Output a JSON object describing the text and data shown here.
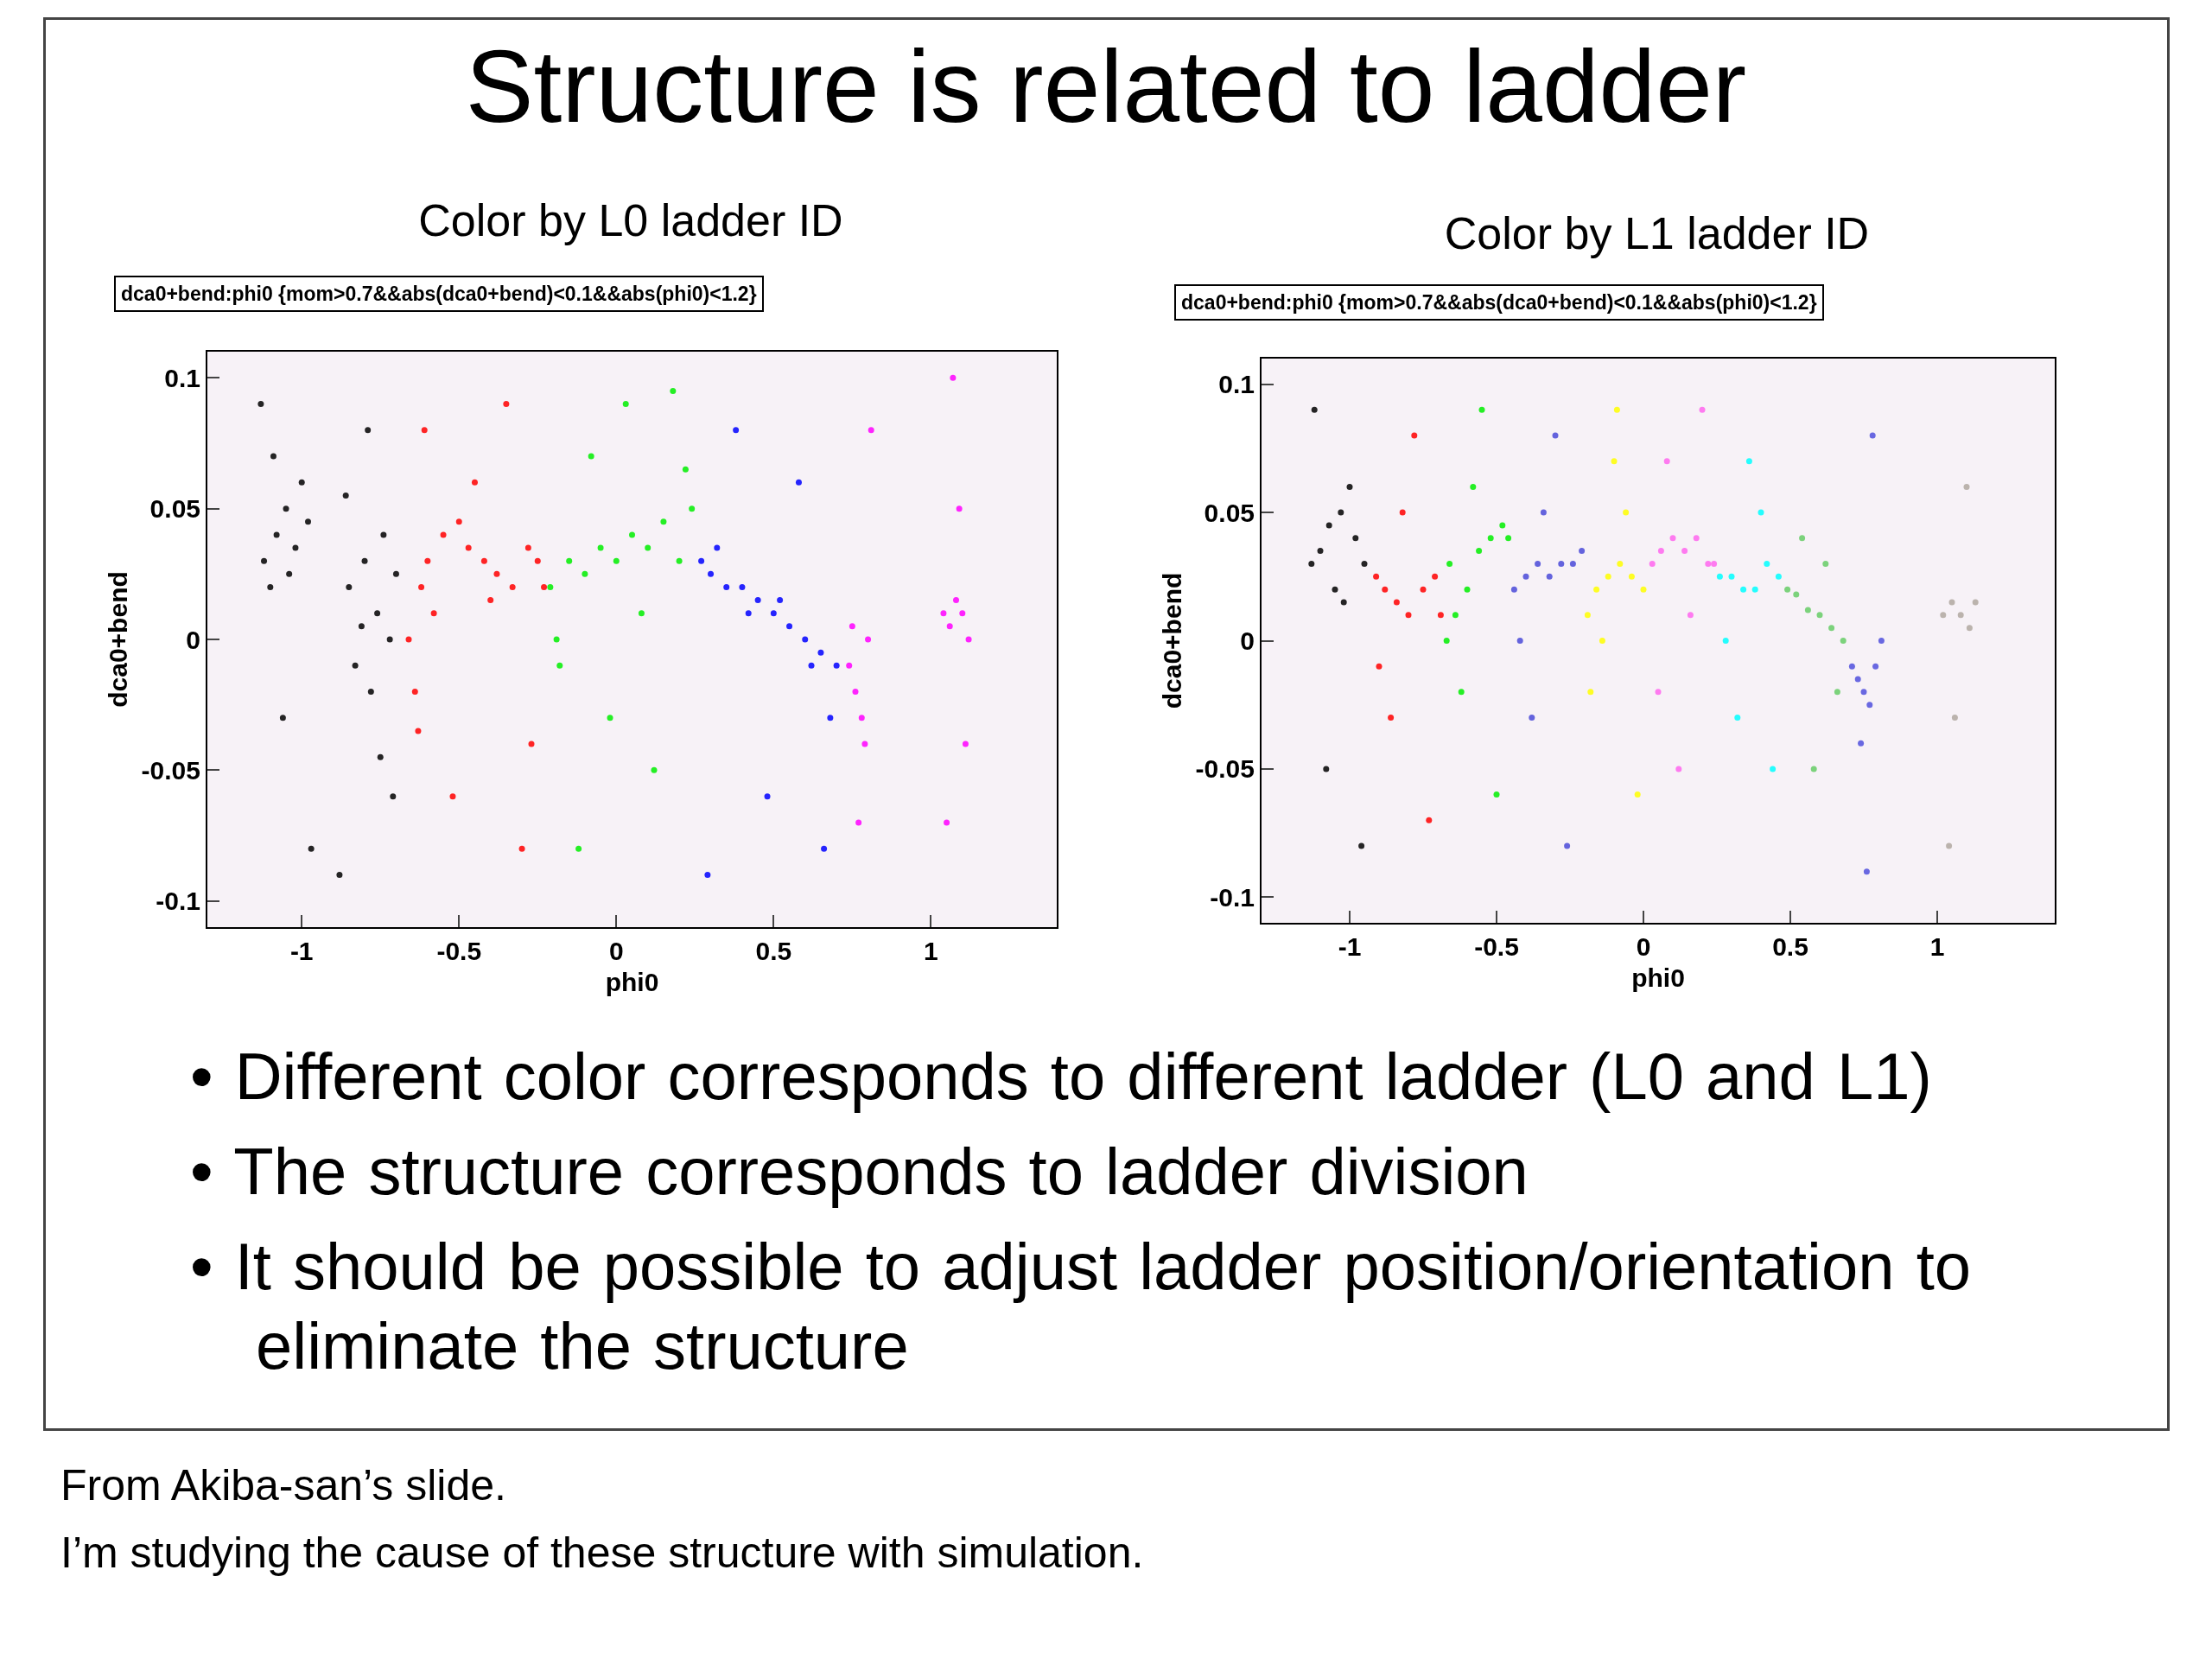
{
  "chart_data": [
    {
      "type": "other",
      "title": "Structure is related to ladder"
    },
    {
      "type": "scatter",
      "title": "Color by L0 ladder ID",
      "xlabel": "phi0",
      "ylabel": "dca0+bend",
      "annotations": [
        "dca0+bend:phi0 {mom>0.7&&abs(dca0+bend)<0.1&&abs(phi0)<1.2}"
      ],
      "xlim": [
        -1.3,
        1.4
      ],
      "ylim": [
        -0.11,
        0.11
      ],
      "xticks": [
        -1,
        -0.5,
        0,
        0.5,
        1
      ],
      "yticks": [
        -0.1,
        -0.05,
        0,
        0.05,
        0.1
      ],
      "grid": false,
      "marker": "circle",
      "series": [
        {
          "color": "#000000",
          "x": [
            -1.12,
            -1.08,
            -1.05,
            -1.02,
            -0.98,
            -1.1,
            -1.04,
            -1.0,
            -1.13,
            -0.97,
            -1.06,
            -0.85,
            -0.8,
            -0.76,
            -0.72,
            -0.7,
            -0.83,
            -0.78,
            -0.74,
            -0.86,
            -0.79,
            -0.71,
            -0.88,
            -0.75,
            -1.09,
            -0.81
          ],
          "values": [
            0.03,
            0.04,
            0.05,
            0.035,
            0.045,
            0.02,
            0.025,
            0.06,
            0.09,
            -0.08,
            -0.03,
            0.02,
            0.03,
            0.01,
            0.0,
            0.025,
            -0.01,
            -0.02,
            0.04,
            0.055,
            0.08,
            -0.06,
            -0.09,
            -0.045,
            0.07,
            0.005
          ]
        },
        {
          "color": "#ff0000",
          "x": [
            -0.66,
            -0.64,
            -0.62,
            -0.6,
            -0.55,
            -0.5,
            -0.47,
            -0.42,
            -0.38,
            -0.33,
            -0.28,
            -0.25,
            -0.23,
            -0.63,
            -0.58,
            -0.45,
            -0.35,
            -0.52,
            -0.3,
            -0.4,
            -0.61,
            -0.27
          ],
          "values": [
            0.0,
            -0.02,
            0.02,
            0.03,
            0.04,
            0.045,
            0.035,
            0.03,
            0.025,
            0.02,
            0.035,
            0.03,
            0.02,
            -0.035,
            0.01,
            0.06,
            0.09,
            -0.06,
            -0.08,
            0.015,
            0.08,
            -0.04
          ]
        },
        {
          "color": "#00ee00",
          "x": [
            -0.21,
            -0.19,
            -0.15,
            -0.1,
            -0.05,
            0.0,
            0.05,
            0.1,
            0.15,
            0.2,
            0.24,
            -0.18,
            -0.08,
            0.03,
            0.12,
            0.22,
            -0.12,
            0.08,
            -0.02,
            0.18
          ],
          "values": [
            0.02,
            0.0,
            0.03,
            0.025,
            0.035,
            0.03,
            0.04,
            0.035,
            0.045,
            0.03,
            0.05,
            -0.01,
            0.07,
            0.09,
            -0.05,
            0.065,
            -0.08,
            0.01,
            -0.03,
            0.095
          ]
        },
        {
          "color": "#0000ff",
          "x": [
            0.27,
            0.3,
            0.35,
            0.4,
            0.45,
            0.5,
            0.55,
            0.6,
            0.65,
            0.7,
            0.32,
            0.42,
            0.52,
            0.62,
            0.68,
            0.38,
            0.48,
            0.58,
            0.29,
            0.66
          ],
          "values": [
            0.03,
            0.025,
            0.02,
            0.02,
            0.015,
            0.01,
            0.005,
            0.0,
            -0.005,
            -0.01,
            0.035,
            0.01,
            0.015,
            -0.01,
            -0.03,
            0.08,
            -0.06,
            0.06,
            -0.09,
            -0.08
          ]
        },
        {
          "color": "#ff00ff",
          "x": [
            0.74,
            0.76,
            0.78,
            0.8,
            0.75,
            0.79,
            0.77,
            0.81,
            1.04,
            1.06,
            1.08,
            1.1,
            1.12,
            1.07,
            1.05,
            1.11,
            1.09
          ],
          "values": [
            -0.01,
            -0.02,
            -0.03,
            0.0,
            0.005,
            -0.04,
            -0.07,
            0.08,
            0.01,
            0.005,
            0.015,
            0.01,
            0.0,
            0.1,
            -0.07,
            -0.04,
            0.05
          ]
        }
      ]
    },
    {
      "type": "scatter",
      "title": "Color by L1 ladder ID",
      "xlabel": "phi0",
      "ylabel": "dca0+bend",
      "annotations": [
        "dca0+bend:phi0 {mom>0.7&&abs(dca0+bend)<0.1&&abs(phi0)<1.2}"
      ],
      "xlim": [
        -1.3,
        1.4
      ],
      "ylim": [
        -0.11,
        0.11
      ],
      "xticks": [
        -1,
        -0.5,
        0,
        0.5,
        1
      ],
      "yticks": [
        -0.1,
        -0.05,
        0,
        0.05,
        0.1
      ],
      "grid": false,
      "marker": "circle",
      "series": [
        {
          "color": "#000000",
          "x": [
            -1.13,
            -1.1,
            -1.07,
            -1.03,
            -0.98,
            -0.95,
            -1.05,
            -1.0,
            -1.12,
            -0.96,
            -1.08,
            -1.02
          ],
          "values": [
            0.03,
            0.035,
            0.045,
            0.05,
            0.04,
            0.03,
            0.02,
            0.06,
            0.09,
            -0.08,
            -0.05,
            0.015
          ]
        },
        {
          "color": "#ff0000",
          "x": [
            -0.91,
            -0.88,
            -0.84,
            -0.8,
            -0.75,
            -0.71,
            -0.69,
            -0.86,
            -0.78,
            -0.73,
            -0.82,
            -0.9
          ],
          "values": [
            0.025,
            0.02,
            0.015,
            0.01,
            0.02,
            0.025,
            0.01,
            -0.03,
            0.08,
            -0.07,
            0.05,
            -0.01
          ]
        },
        {
          "color": "#00ee00",
          "x": [
            -0.67,
            -0.64,
            -0.6,
            -0.56,
            -0.52,
            -0.48,
            -0.46,
            -0.62,
            -0.55,
            -0.5,
            -0.58,
            -0.66
          ],
          "values": [
            0.0,
            0.01,
            0.02,
            0.035,
            0.04,
            0.045,
            0.04,
            -0.02,
            0.09,
            -0.06,
            0.06,
            0.03
          ]
        },
        {
          "color": "#4a4ad8",
          "x": [
            -0.44,
            -0.4,
            -0.36,
            -0.32,
            -0.28,
            -0.24,
            -0.21,
            -0.38,
            -0.3,
            -0.26,
            -0.42,
            -0.34
          ],
          "values": [
            0.02,
            0.025,
            0.03,
            0.025,
            0.03,
            0.03,
            0.035,
            -0.03,
            0.08,
            -0.08,
            0.0,
            0.05
          ]
        },
        {
          "color": "#ffff00",
          "x": [
            -0.19,
            -0.16,
            -0.12,
            -0.08,
            -0.04,
            0.0,
            -0.14,
            -0.06,
            -0.1,
            -0.02,
            -0.18,
            -0.09
          ],
          "values": [
            0.01,
            0.02,
            0.025,
            0.03,
            0.025,
            0.02,
            0.0,
            0.05,
            0.07,
            -0.06,
            -0.02,
            0.09
          ]
        },
        {
          "color": "#ff66ee",
          "x": [
            0.03,
            0.06,
            0.1,
            0.14,
            0.18,
            0.22,
            0.24,
            0.08,
            0.16,
            0.12,
            0.2,
            0.05
          ],
          "values": [
            0.03,
            0.035,
            0.04,
            0.035,
            0.04,
            0.03,
            0.03,
            0.07,
            0.01,
            -0.05,
            0.09,
            -0.02
          ]
        },
        {
          "color": "#00ffff",
          "x": [
            0.26,
            0.3,
            0.34,
            0.38,
            0.42,
            0.46,
            0.28,
            0.36,
            0.44,
            0.32,
            0.4
          ],
          "values": [
            0.025,
            0.025,
            0.02,
            0.02,
            0.03,
            0.025,
            0.0,
            0.07,
            -0.05,
            -0.03,
            0.05
          ]
        },
        {
          "color": "#66cc66",
          "x": [
            0.49,
            0.52,
            0.56,
            0.6,
            0.64,
            0.68,
            0.54,
            0.62,
            0.58,
            0.66
          ],
          "values": [
            0.02,
            0.018,
            0.012,
            0.01,
            0.005,
            0.0,
            0.04,
            0.03,
            -0.05,
            -0.02
          ]
        },
        {
          "color": "#5050dd",
          "x": [
            0.71,
            0.73,
            0.75,
            0.77,
            0.79,
            0.81,
            0.74,
            0.78,
            0.76
          ],
          "values": [
            -0.01,
            -0.015,
            -0.02,
            -0.025,
            -0.01,
            0.0,
            -0.04,
            0.08,
            -0.09
          ]
        },
        {
          "color": "#b0a8a0",
          "x": [
            1.02,
            1.05,
            1.08,
            1.11,
            1.13,
            1.06,
            1.1,
            1.04
          ],
          "values": [
            0.01,
            0.015,
            0.01,
            0.005,
            0.015,
            -0.03,
            0.06,
            -0.08
          ]
        }
      ]
    },
    {
      "type": "other",
      "annotations": [
        "• Different color corresponds to different ladder (L0 and L1)",
        "• The structure corresponds to ladder division",
        "• It should be possible to adjust ladder position/orientation to eliminate the structure"
      ]
    },
    {
      "type": "other",
      "annotations": [
        "From Akiba-san’s slide.",
        "I’m studying the cause of these structure with simulation."
      ]
    }
  ]
}
